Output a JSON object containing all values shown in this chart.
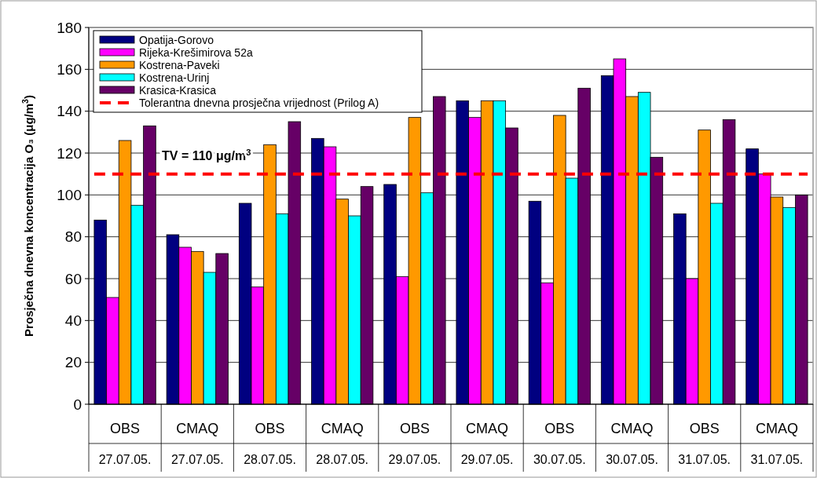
{
  "chart_data": {
    "type": "bar",
    "categories": [
      "OBS\n27.07.05.",
      "CMAQ\n27.07.05.",
      "OBS\n28.07.05.",
      "CMAQ\n28.07.05.",
      "OBS\n29.07.05.",
      "CMAQ\n29.07.05.",
      "OBS\n30.07.05.",
      "CMAQ\n30.07.05.",
      "OBS\n31.07.05.",
      "CMAQ\n31.07.05."
    ],
    "ylabel": "Prosječna dnevna koncentracija O₃ (μg/m$^{3}$)",
    "series": [
      {
        "name": "Opatija-Gorovo",
        "color": "#000080",
        "values": [
          88,
          81,
          96,
          127,
          105,
          145,
          97,
          157,
          91,
          122
        ]
      },
      {
        "name": "Rijeka-Krešimirova 52a",
        "color": "#ff00ff",
        "values": [
          51,
          75,
          56,
          123,
          61,
          137,
          58,
          165,
          60,
          110
        ]
      },
      {
        "name": "Kostrena-Paveki",
        "color": "#ff9900",
        "values": [
          126,
          73,
          124,
          98,
          137,
          145,
          138,
          147,
          131,
          99
        ]
      },
      {
        "name": "Kostrena-Urinj",
        "color": "#00ffff",
        "values": [
          95,
          63,
          91,
          90,
          101,
          145,
          108,
          149,
          96,
          94
        ]
      },
      {
        "name": "Krasica-Krasica",
        "color": "#660066",
        "values": [
          133,
          72,
          135,
          104,
          147,
          132,
          151,
          118,
          136,
          100
        ]
      }
    ],
    "ylim": [
      0,
      180
    ],
    "yticks": [
      0,
      20,
      40,
      60,
      80,
      100,
      120,
      140,
      160,
      180
    ],
    "grid": "y",
    "legend": "top left",
    "ref_lines": [
      {
        "axis": "y",
        "value": 110,
        "label": "Tolerantna dnevna prosječna vrijednost (Prilog A)",
        "color": "#ff0000",
        "line_style": "dashed"
      }
    ],
    "annotations": [
      {
        "text": "TV = 110 μg/m$^{3}$",
        "y": 110
      }
    ]
  }
}
